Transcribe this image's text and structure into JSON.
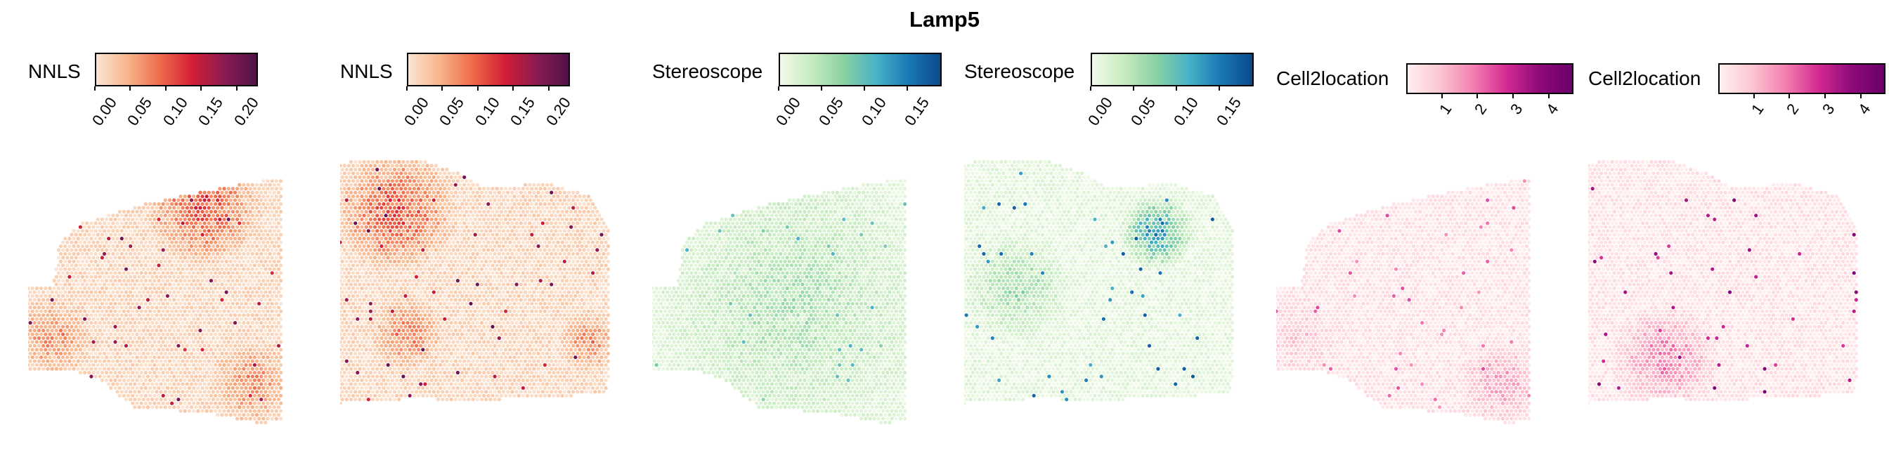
{
  "title": "Lamp5",
  "chart_data": [
    {
      "type": "spatial_scatter",
      "panel": 1,
      "method": "NNLS",
      "colorbar": {
        "ticks": [
          "0.00",
          "0.05",
          "0.10",
          "0.15",
          "0.20"
        ],
        "range": [
          0,
          0.23
        ],
        "colors": [
          "#fbe5d3",
          "#f7b48a",
          "#ef6a4a",
          "#d41f35",
          "#8a1a52",
          "#4f1248"
        ]
      },
      "tissue": "shapeA",
      "hotspots": [
        {
          "region": "left lobe",
          "level": 0.06
        },
        {
          "region": "top-right cortex",
          "level": 0.1
        },
        {
          "region": "bottom-right",
          "level": 0.06
        }
      ],
      "max_value": 0.21
    },
    {
      "type": "spatial_scatter",
      "panel": 2,
      "method": "NNLS",
      "colorbar": {
        "ticks": [
          "0.00",
          "0.05",
          "0.10",
          "0.15",
          "0.20"
        ],
        "range": [
          0,
          0.23
        ],
        "colors": [
          "#fbe5d3",
          "#f7b48a",
          "#ef6a4a",
          "#d41f35",
          "#8a1a52",
          "#4f1248"
        ]
      },
      "tissue": "shapeB",
      "hotspots": [
        {
          "region": "top-left cortex",
          "level": 0.1
        },
        {
          "region": "lower-middle",
          "level": 0.07
        },
        {
          "region": "right edge",
          "level": 0.06
        }
      ],
      "max_value": 0.22
    },
    {
      "type": "spatial_scatter",
      "panel": 3,
      "method": "Stereoscope",
      "colorbar": {
        "ticks": [
          "0.00",
          "0.05",
          "0.10",
          "0.15"
        ],
        "range": [
          0,
          0.19
        ],
        "colors": [
          "#f2faea",
          "#c6ebbf",
          "#89d1a3",
          "#48b3c6",
          "#1a79b5",
          "#0a4a8c"
        ]
      },
      "tissue": "shapeA",
      "hotspots": [
        {
          "region": "diffuse",
          "level": 0.04
        }
      ],
      "max_value": 0.12
    },
    {
      "type": "spatial_scatter",
      "panel": 4,
      "method": "Stereoscope",
      "colorbar": {
        "ticks": [
          "0.00",
          "0.05",
          "0.10",
          "0.15"
        ],
        "range": [
          0,
          0.19
        ],
        "colors": [
          "#f2faea",
          "#c6ebbf",
          "#89d1a3",
          "#48b3c6",
          "#1a79b5",
          "#0a4a8c"
        ]
      },
      "tissue": "shapeB",
      "hotspots": [
        {
          "region": "upper-right cluster",
          "level": 0.13
        },
        {
          "region": "left-middle",
          "level": 0.05
        }
      ],
      "max_value": 0.18
    },
    {
      "type": "spatial_scatter",
      "panel": 5,
      "method": "Cell2location",
      "colorbar": {
        "ticks": [
          "1",
          "2",
          "3",
          "4"
        ],
        "range": [
          0,
          4.7
        ],
        "colors": [
          "#fff0f0",
          "#fcc5d2",
          "#f37fb0",
          "#d42a91",
          "#8e0a79",
          "#6a006a"
        ]
      },
      "tissue": "shapeA",
      "hotspots": [
        {
          "region": "bottom-right",
          "level": 1.2
        },
        {
          "region": "left lobe",
          "level": 0.6
        }
      ],
      "max_value": 2.5
    },
    {
      "type": "spatial_scatter",
      "panel": 6,
      "method": "Cell2location",
      "colorbar": {
        "ticks": [
          "1",
          "2",
          "3",
          "4"
        ],
        "range": [
          0,
          4.7
        ],
        "colors": [
          "#fff0f0",
          "#fcc5d2",
          "#f37fb0",
          "#d42a91",
          "#8e0a79",
          "#6a006a"
        ]
      },
      "tissue": "shapeB",
      "hotspots": [
        {
          "region": "bottom-left blob",
          "level": 1.6
        }
      ],
      "max_value": 4.2
    }
  ]
}
